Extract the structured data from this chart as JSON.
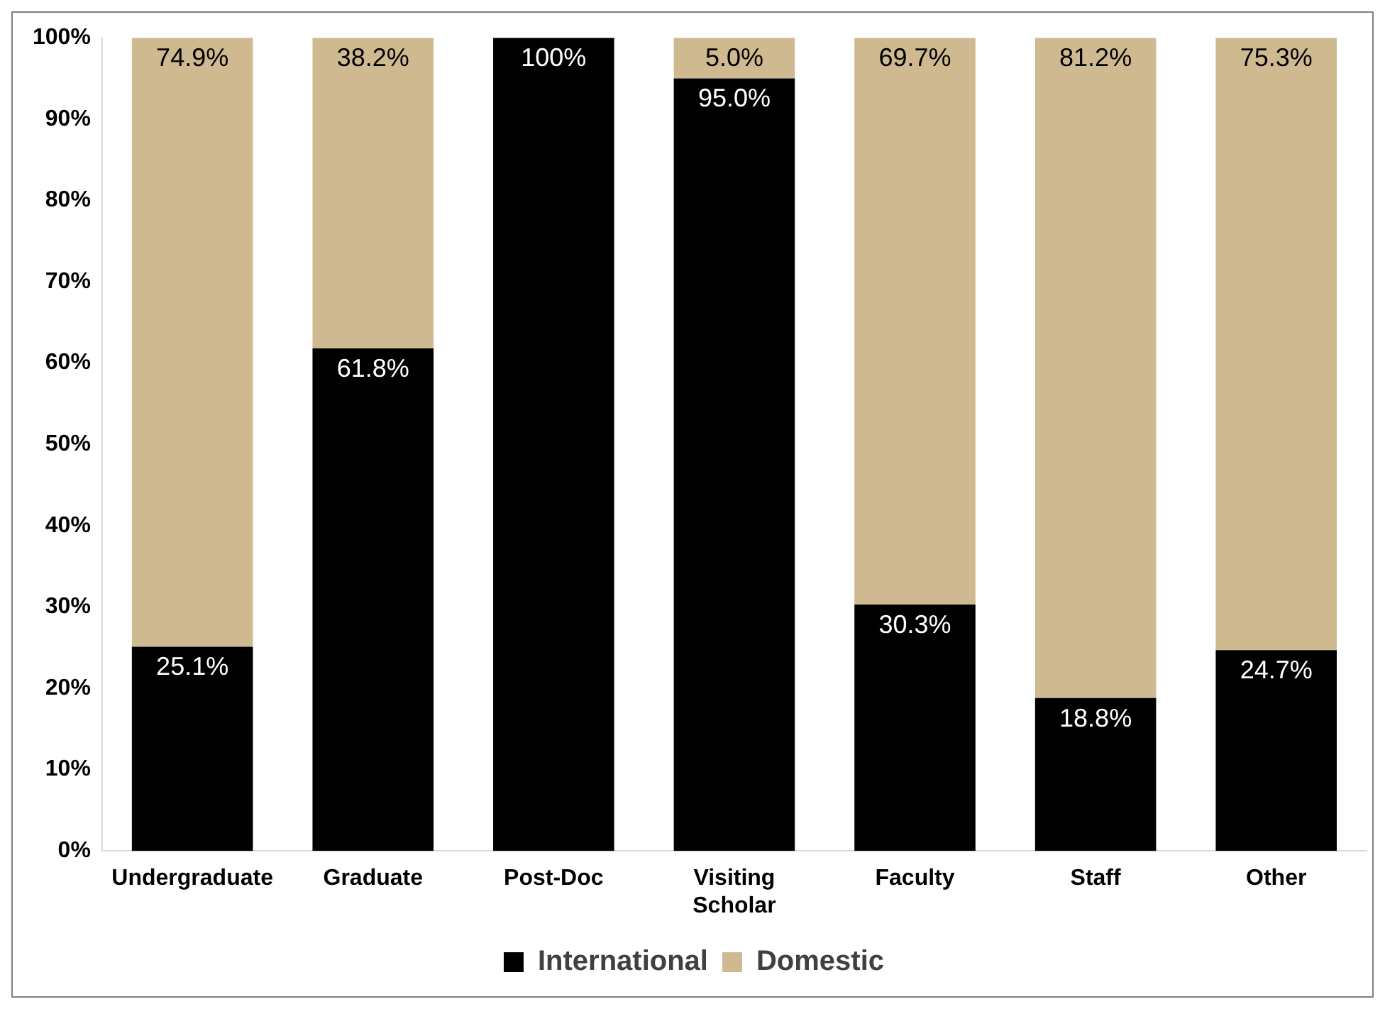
{
  "chart_data": {
    "type": "bar",
    "stacked": true,
    "categories": [
      "Undergraduate",
      "Graduate",
      "Post-Doc",
      "Visiting Scholar",
      "Faculty",
      "Staff",
      "Other"
    ],
    "series": [
      {
        "name": "International",
        "color": "#000000",
        "values": [
          25.1,
          61.8,
          100,
          95.0,
          30.3,
          18.8,
          24.7
        ],
        "value_labels": [
          "25.1%",
          "61.8%",
          "100%",
          "95.0%",
          "30.3%",
          "18.8%",
          "24.7%"
        ]
      },
      {
        "name": "Domestic",
        "color": "#cfb991",
        "values": [
          74.9,
          38.2,
          0,
          5.0,
          69.7,
          81.2,
          75.3
        ],
        "value_labels": [
          "74.9%",
          "38.2%",
          null,
          "5.0%",
          "69.7%",
          "81.2%",
          "75.3%"
        ]
      }
    ],
    "ylim": [
      0,
      100
    ],
    "yticks": [
      {
        "value": 0,
        "label": "0%"
      },
      {
        "value": 10,
        "label": "10%"
      },
      {
        "value": 20,
        "label": "20%"
      },
      {
        "value": 30,
        "label": "30%"
      },
      {
        "value": 40,
        "label": "40%"
      },
      {
        "value": 50,
        "label": "50%"
      },
      {
        "value": 60,
        "label": "60%"
      },
      {
        "value": 70,
        "label": "70%"
      },
      {
        "value": 80,
        "label": "80%"
      },
      {
        "value": 90,
        "label": "90%"
      },
      {
        "value": 100,
        "label": "100%"
      }
    ],
    "grid": false,
    "legend": "bottom"
  }
}
